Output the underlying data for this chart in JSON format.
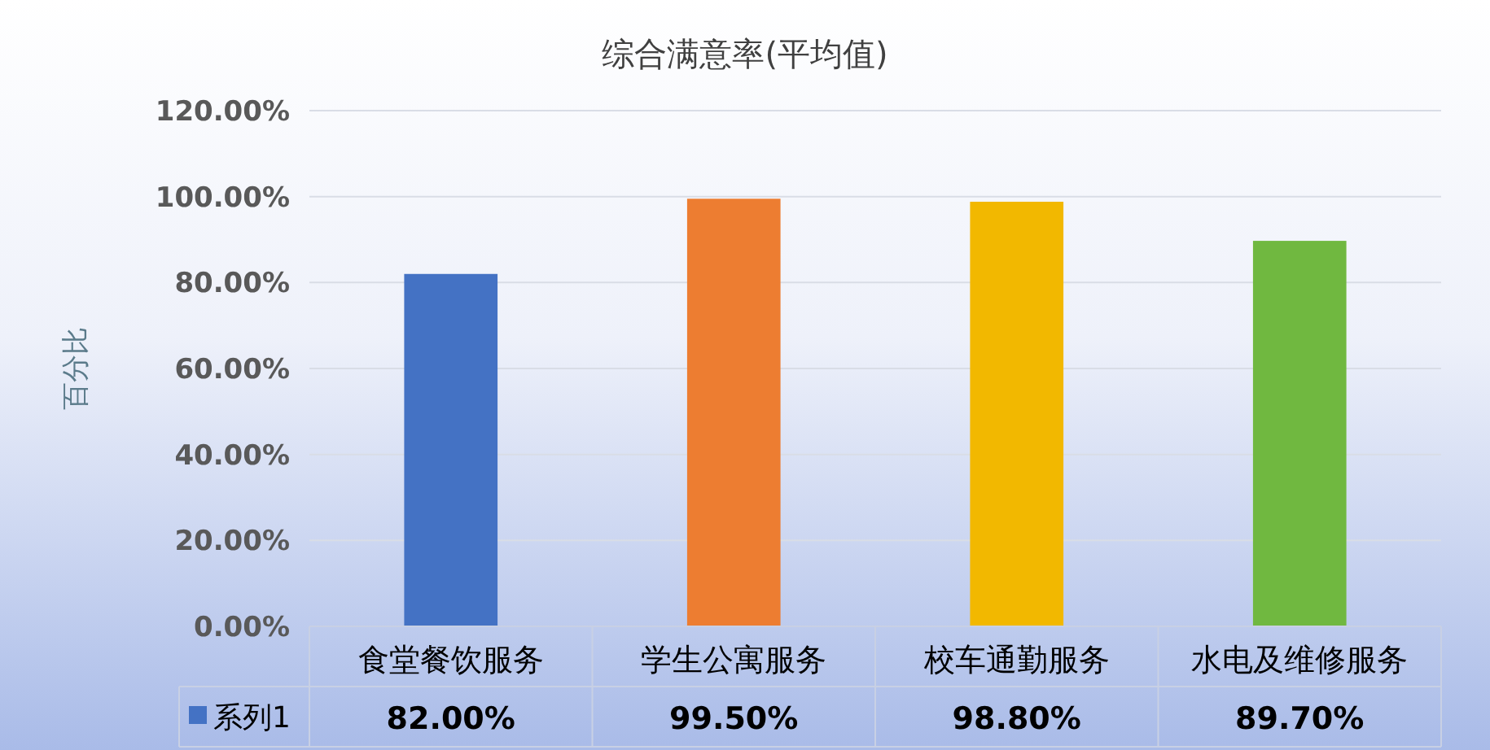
{
  "chart_data": {
    "type": "bar",
    "title": "综合满意率(平均值)",
    "ylabel": "百分比",
    "categories": [
      "食堂餐饮服务",
      "学生公寓服务",
      "校车通勤服务",
      "水电及维修服务"
    ],
    "series": [
      {
        "name": "系列1",
        "color": "#4472c4",
        "colors": [
          "#4472c4",
          "#ed7d31",
          "#f2b800",
          "#70b840"
        ],
        "values": [
          82,
          99.5,
          98.8,
          89.7
        ],
        "value_labels": [
          "82.00%",
          "99.50%",
          "98.80%",
          "89.70%"
        ]
      }
    ],
    "ylim": [
      0,
      120
    ],
    "yticks": [
      {
        "value": 0,
        "label": "0.00%"
      },
      {
        "value": 20,
        "label": "20.00%"
      },
      {
        "value": 40,
        "label": "40.00%"
      },
      {
        "value": 60,
        "label": "60.00%"
      },
      {
        "value": 80,
        "label": "80.00%"
      },
      {
        "value": 100,
        "label": "100.00%"
      },
      {
        "value": 120,
        "label": "120.00%"
      }
    ],
    "grid": "y",
    "data_labels": true
  }
}
